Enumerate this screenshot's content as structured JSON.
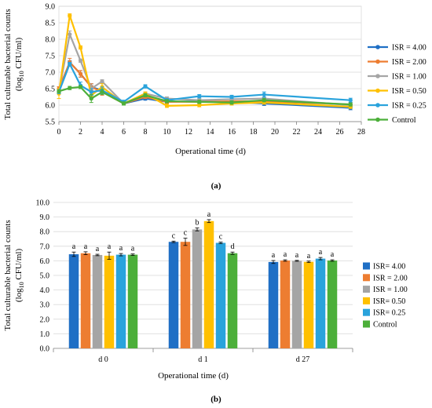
{
  "colors": {
    "isr_4_00": "#1f6fc5",
    "isr_2_00": "#ed7d31",
    "isr_1_00": "#a5a5a5",
    "isr_0_50": "#ffc000",
    "isr_0_25": "#2aa3dc",
    "control": "#4caf3a"
  },
  "chart_data": [
    {
      "panel_label": "(a)",
      "type": "line",
      "ylabel_line1": "Total culturable bacterial counts",
      "ylabel_line2": "(log10 CFU/ml)",
      "xlabel": "Operational time (d)",
      "xlim": [
        0,
        28
      ],
      "ylim": [
        5.5,
        9.0
      ],
      "x_ticks": [
        0,
        2,
        4,
        6,
        8,
        10,
        12,
        14,
        16,
        18,
        20,
        22,
        24,
        26,
        28
      ],
      "y_ticks": [
        "5.5",
        "6.0",
        "6.5",
        "7.0",
        "7.5",
        "8.0",
        "8.5",
        "9.0"
      ],
      "legend_position": "right",
      "x": [
        0,
        1,
        2,
        3,
        4,
        6,
        8,
        10,
        13,
        16,
        19,
        27
      ],
      "series": [
        {
          "name": "ISR = 4.00",
          "color_key": "isr_4_00",
          "values": [
            6.42,
            7.3,
            6.95,
            6.55,
            6.45,
            6.05,
            6.2,
            6.1,
            6.12,
            6.1,
            6.05,
            5.92
          ],
          "errors": [
            0.08,
            0.05,
            0.1,
            0.1,
            0.1,
            0.05,
            0.05,
            0.05,
            0.05,
            0.05,
            0.06,
            0.06
          ]
        },
        {
          "name": "ISR = 2.00",
          "color_key": "isr_2_00",
          "values": [
            6.5,
            7.3,
            6.95,
            6.55,
            6.4,
            6.05,
            6.25,
            6.1,
            6.1,
            6.12,
            6.12,
            6.02
          ],
          "errors": [
            0.06,
            0.12,
            0.1,
            0.1,
            0.1,
            0.05,
            0.05,
            0.05,
            0.05,
            0.05,
            0.05,
            0.05
          ]
        },
        {
          "name": "ISR = 1.00",
          "color_key": "isr_1_00",
          "values": [
            6.4,
            8.15,
            7.35,
            6.5,
            6.72,
            6.05,
            6.35,
            6.2,
            6.15,
            6.18,
            6.2,
            6.0
          ],
          "errors": [
            0.03,
            0.1,
            0.05,
            0.1,
            0.05,
            0.05,
            0.05,
            0.05,
            0.05,
            0.05,
            0.05,
            0.03
          ]
        },
        {
          "name": "ISR = 0.50",
          "color_key": "isr_0_50",
          "values": [
            6.35,
            8.72,
            7.75,
            6.3,
            6.55,
            6.05,
            6.35,
            5.98,
            6.0,
            6.05,
            6.08,
            5.95
          ],
          "errors": [
            0.15,
            0.05,
            0.05,
            0.1,
            0.1,
            0.05,
            0.05,
            0.05,
            0.05,
            0.05,
            0.05,
            0.05
          ]
        },
        {
          "name": "ISR = 0.25",
          "color_key": "isr_0_25",
          "values": [
            6.4,
            7.25,
            6.6,
            6.4,
            6.45,
            6.1,
            6.57,
            6.15,
            6.27,
            6.25,
            6.32,
            6.15
          ],
          "errors": [
            0.05,
            0.05,
            0.1,
            0.1,
            0.1,
            0.05,
            0.05,
            0.05,
            0.05,
            0.05,
            0.08,
            0.06
          ]
        },
        {
          "name": "Control",
          "color_key": "control",
          "values": [
            6.42,
            6.52,
            6.55,
            6.2,
            6.4,
            6.05,
            6.3,
            6.12,
            6.1,
            6.08,
            6.15,
            6.02
          ],
          "errors": [
            0.05,
            0.05,
            0.05,
            0.12,
            0.08,
            0.05,
            0.05,
            0.05,
            0.05,
            0.05,
            0.05,
            0.05
          ]
        }
      ]
    },
    {
      "panel_label": "(b)",
      "type": "bar",
      "ylabel_line1": "Total culturable bacterial counts",
      "ylabel_line2": "(log10 CFU/ml)",
      "xlabel": "Operational time (d)",
      "ylim": [
        0.0,
        10.0
      ],
      "y_ticks": [
        "0.0",
        "1.0",
        "2.0",
        "3.0",
        "4.0",
        "5.0",
        "6.0",
        "7.0",
        "8.0",
        "9.0",
        "10.0"
      ],
      "categories": [
        "d 0",
        "d 1",
        "d 27"
      ],
      "legend_position": "right",
      "series": [
        {
          "name": "ISR= 4.00",
          "color_key": "isr_4_00",
          "values": [
            6.45,
            7.3,
            5.92
          ],
          "errors": [
            0.15,
            0.05,
            0.1
          ],
          "letters": [
            "a",
            "c",
            "a"
          ]
        },
        {
          "name": "ISR = 2.00",
          "color_key": "isr_2_00",
          "values": [
            6.52,
            7.3,
            6.02
          ],
          "errors": [
            0.1,
            0.25,
            0.05
          ],
          "letters": [
            "a",
            "c",
            "a"
          ]
        },
        {
          "name": "ISR = 1.00",
          "color_key": "isr_1_00",
          "values": [
            6.4,
            8.15,
            6.0
          ],
          "errors": [
            0.05,
            0.1,
            0.03
          ],
          "letters": [
            "a",
            "b",
            "a"
          ]
        },
        {
          "name": "ISR= 0.50",
          "color_key": "isr_0_50",
          "values": [
            6.35,
            8.72,
            5.93
          ],
          "errors": [
            0.25,
            0.1,
            0.05
          ],
          "letters": [
            "a",
            "a",
            "a"
          ]
        },
        {
          "name": "ISR= 0.25",
          "color_key": "isr_0_25",
          "values": [
            6.42,
            7.23,
            6.15
          ],
          "errors": [
            0.08,
            0.05,
            0.08
          ],
          "letters": [
            "a",
            "c",
            "a"
          ]
        },
        {
          "name": "Control",
          "color_key": "control",
          "values": [
            6.42,
            6.52,
            6.02
          ],
          "errors": [
            0.05,
            0.08,
            0.05
          ],
          "letters": [
            "a",
            "d",
            "a"
          ]
        }
      ]
    }
  ]
}
